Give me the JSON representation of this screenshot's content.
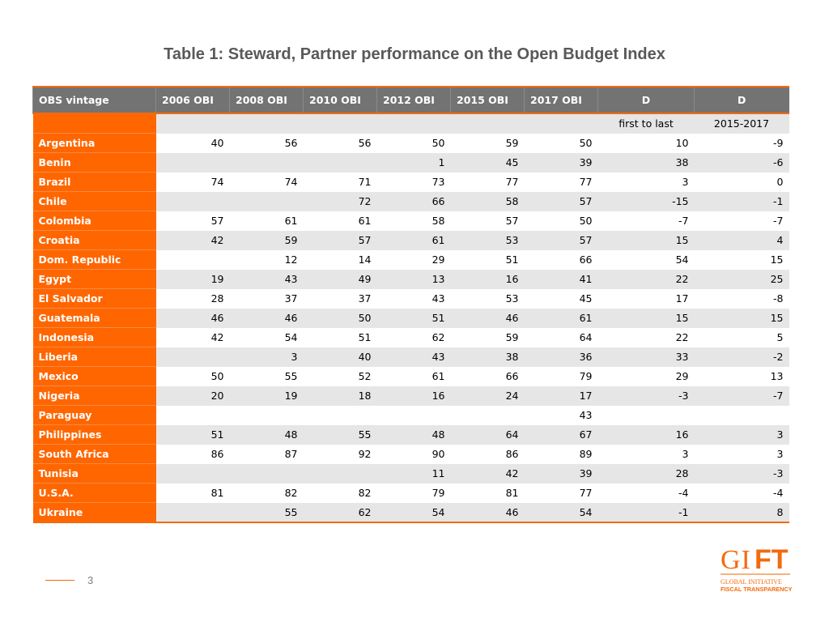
{
  "title": "Table 1: Steward, Partner performance on the Open Budget Index",
  "table": {
    "headers": [
      "OBS vintage",
      "2006 OBI",
      "2008 OBI",
      "2010 OBI",
      "2012 OBI",
      "2015 OBI",
      "2017 OBI",
      "D",
      "D"
    ],
    "subheaders": [
      "",
      "",
      "",
      "",
      "",
      "",
      "",
      "first to last",
      "2015-2017"
    ],
    "rows": [
      [
        "Argentina",
        "40",
        "56",
        "56",
        "50",
        "59",
        "50",
        "10",
        "-9"
      ],
      [
        "Benin",
        "",
        "",
        "",
        "1",
        "45",
        "39",
        "38",
        "-6"
      ],
      [
        "Brazil",
        "74",
        "74",
        "71",
        "73",
        "77",
        "77",
        "3",
        "0"
      ],
      [
        "Chile",
        "",
        "",
        "72",
        "66",
        "58",
        "57",
        "-15",
        "-1"
      ],
      [
        "Colombia",
        "57",
        "61",
        "61",
        "58",
        "57",
        "50",
        "-7",
        "-7"
      ],
      [
        "Croatia",
        "42",
        "59",
        "57",
        "61",
        "53",
        "57",
        "15",
        "4"
      ],
      [
        "Dom. Republic",
        "",
        "12",
        "14",
        "29",
        "51",
        "66",
        "54",
        "15"
      ],
      [
        "Egypt",
        "19",
        "43",
        "49",
        "13",
        "16",
        "41",
        "22",
        "25"
      ],
      [
        "El Salvador",
        "28",
        "37",
        "37",
        "43",
        "53",
        "45",
        "17",
        "-8"
      ],
      [
        "Guatemala",
        "46",
        "46",
        "50",
        "51",
        "46",
        "61",
        "15",
        "15"
      ],
      [
        "Indonesia",
        "42",
        "54",
        "51",
        "62",
        "59",
        "64",
        "22",
        "5"
      ],
      [
        "Liberia",
        "",
        "3",
        "40",
        "43",
        "38",
        "36",
        "33",
        "-2"
      ],
      [
        "Mexico",
        "50",
        "55",
        "52",
        "61",
        "66",
        "79",
        "29",
        "13"
      ],
      [
        "Nigeria",
        "20",
        "19",
        "18",
        "16",
        "24",
        "17",
        "-3",
        "-7"
      ],
      [
        "Paraguay",
        "",
        "",
        "",
        "",
        "",
        "43",
        "",
        ""
      ],
      [
        "Philippines",
        "51",
        "48",
        "55",
        "48",
        "64",
        "67",
        "16",
        "3"
      ],
      [
        "South Africa",
        "86",
        "87",
        "92",
        "90",
        "86",
        "89",
        "3",
        "3"
      ],
      [
        "Tunisia",
        "",
        "",
        "",
        "11",
        "42",
        "39",
        "28",
        "-3"
      ],
      [
        "U.S.A.",
        "81",
        "82",
        "82",
        "79",
        "81",
        "77",
        "-4",
        "-4"
      ],
      [
        "Ukraine",
        "",
        "55",
        "62",
        "54",
        "46",
        "54",
        "-1",
        "8"
      ]
    ]
  },
  "page_number": "3",
  "logo": {
    "text": "GIFT",
    "tagline1": "GLOBAL INITIATIVE",
    "tagline1_small": "FOR",
    "tagline2": "FISCAL TRANSPARENCY"
  },
  "colors": {
    "accent": "#ff6600",
    "header": "#737373",
    "stripe": "#e6e6e6"
  }
}
